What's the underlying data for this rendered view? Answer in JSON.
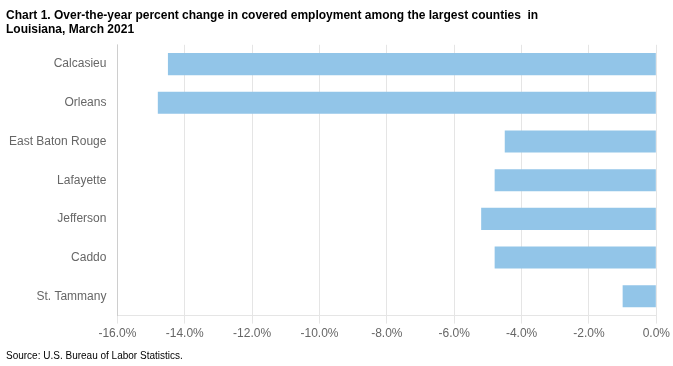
{
  "chart_data": {
    "type": "bar",
    "orientation": "horizontal",
    "title": [
      "Chart 1. Over-the-year percent change in covered employment among the largest counties  in",
      "Louisiana, March 2021"
    ],
    "annotations": [
      "Source: U.S. Bureau of Labor Statistics."
    ],
    "categories": [
      "St. Tammany",
      "Caddo",
      "Jefferson",
      "Lafayette",
      "East Baton Rouge",
      "Orleans",
      "Calcasieu"
    ],
    "values": [
      -1.0,
      -4.8,
      -5.2,
      -4.8,
      -4.5,
      -14.8,
      -14.5
    ],
    "color": "#92C5E8",
    "xlim": [
      -16.0,
      0.0
    ],
    "xticks": [
      {
        "value": -16.0,
        "label": "-16.0%"
      },
      {
        "value": -14.0,
        "label": "-14.0%"
      },
      {
        "value": -12.0,
        "label": "-12.0%"
      },
      {
        "value": -10.0,
        "label": "-10.0%"
      },
      {
        "value": -8.0,
        "label": "-8.0%"
      },
      {
        "value": -6.0,
        "label": "-6.0%"
      },
      {
        "value": -4.0,
        "label": "-4.0%"
      },
      {
        "value": -2.0,
        "label": "-2.0%"
      },
      {
        "value": 0.0,
        "label": "0.0%"
      }
    ],
    "grid": true
  }
}
